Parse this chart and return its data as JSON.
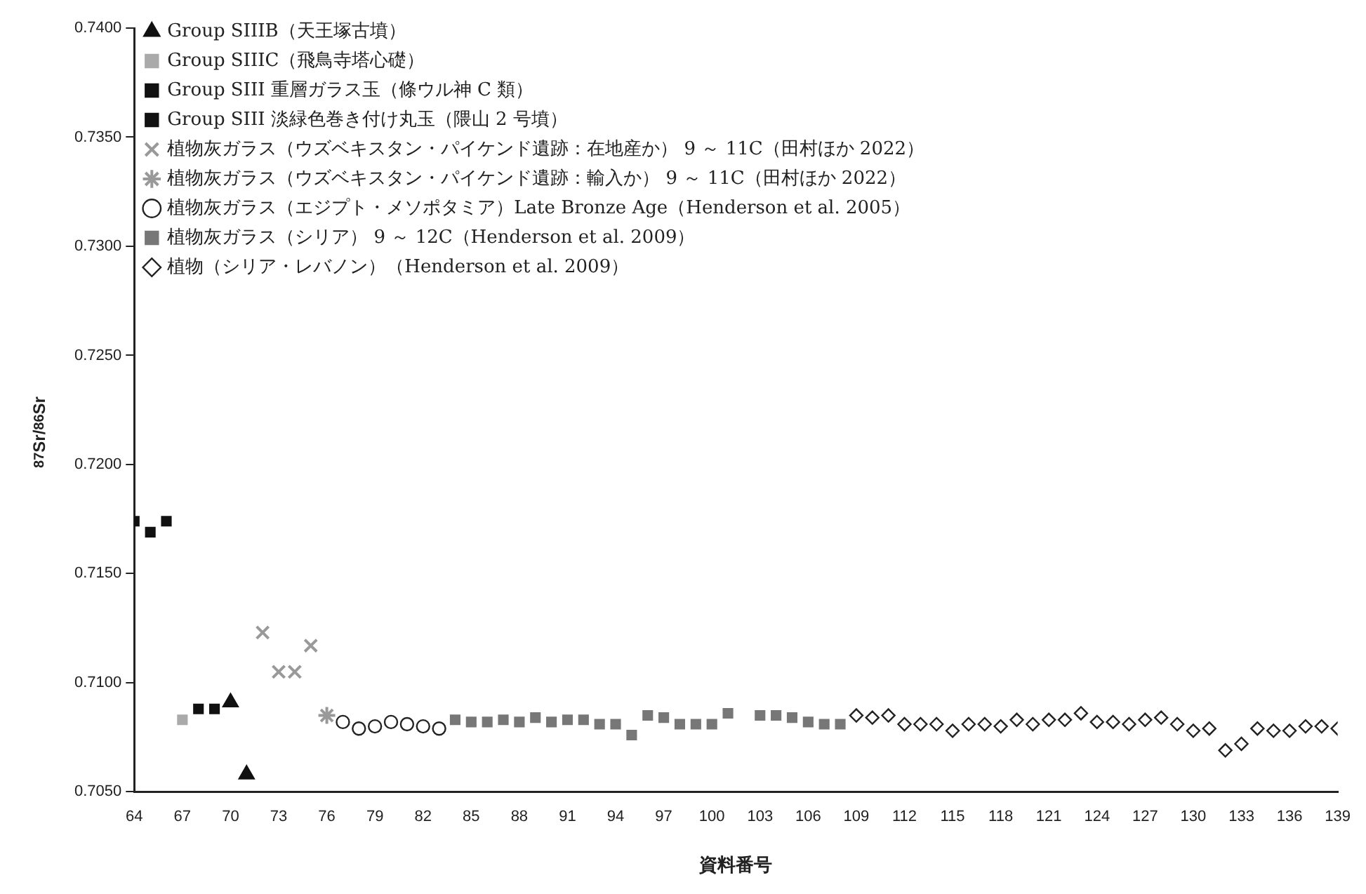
{
  "chart_data": {
    "type": "scatter",
    "xlabel": "資料番号",
    "ylabel": "$^{87}$Sr/$^{86}$Sr",
    "xlim": [
      64,
      139
    ],
    "xticks": [
      64,
      67,
      70,
      73,
      76,
      79,
      82,
      85,
      88,
      91,
      94,
      97,
      100,
      103,
      106,
      109,
      112,
      115,
      118,
      121,
      124,
      127,
      130,
      133,
      136,
      139
    ],
    "ylim": [
      0.705,
      0.74
    ],
    "yticks": [
      {
        "value": 0.705,
        "label": "0.7050"
      },
      {
        "value": 0.71,
        "label": "0.7100"
      },
      {
        "value": 0.715,
        "label": "0.7150"
      },
      {
        "value": 0.72,
        "label": "0.7200"
      },
      {
        "value": 0.725,
        "label": "0.7250"
      },
      {
        "value": 0.73,
        "label": "0.7300"
      },
      {
        "value": 0.735,
        "label": "0.7350"
      },
      {
        "value": 0.74,
        "label": "0.7400"
      }
    ],
    "grid": false,
    "legend": "top left",
    "series": [
      {
        "name": "Group SIIIB（天王塚古墳）",
        "color": "#111111",
        "marker": "triangle",
        "x": [
          70,
          71
        ],
        "values": [
          0.7091,
          0.7058
        ]
      },
      {
        "name": "Group SIIIC（飛鳥寺塔心礎）",
        "color": "#aaaaaa",
        "marker": "square",
        "x": [
          67
        ],
        "values": [
          0.7083
        ]
      },
      {
        "name": "Group SIII 重層ガラス玉（條ウル神 C 類）",
        "color": "#111111",
        "marker": "square",
        "x": [
          64,
          65,
          66
        ],
        "values": [
          0.7174,
          0.7169,
          0.7174
        ]
      },
      {
        "name": "Group SIII 淡緑色巻き付け丸玉（隈山 2 号墳）",
        "color": "#111111",
        "marker": "square",
        "x": [
          68,
          69
        ],
        "values": [
          0.7088,
          0.7088
        ]
      },
      {
        "name": "植物灰ガラス（ウズベキスタン・パイケンド遺跡：在地産か） 9 ～ 11C（田村ほか 2022）",
        "color": "#999999",
        "marker": "cross",
        "x": [
          72,
          73,
          74,
          75
        ],
        "values": [
          0.7123,
          0.7105,
          0.7105,
          0.7117
        ]
      },
      {
        "name": "植物灰ガラス（ウズベキスタン・パイケンド遺跡：輸入か） 9 ～ 11C（田村ほか 2022）",
        "color": "#999999",
        "x": [
          76
        ],
        "values": [
          0.7085
        ]
      },
      {
        "name": "植物灰ガラス（エジプト・メソポタミア）Late Bronze Age（Henderson et al. 2005）",
        "color": "#222222",
        "marker": "circle",
        "x": [
          77,
          78,
          79,
          80,
          81,
          82,
          83
        ],
        "values": [
          0.7082,
          0.7079,
          0.708,
          0.7082,
          0.7081,
          0.708,
          0.7079
        ]
      },
      {
        "name": "植物灰ガラス（シリア） 9 ～ 12C（Henderson et al. 2009）",
        "color": "#777777",
        "marker": "square",
        "x": [
          84,
          85,
          86,
          87,
          88,
          89,
          90,
          91,
          92,
          93,
          94,
          95,
          96,
          97,
          98,
          99,
          100,
          101,
          103,
          104,
          105,
          106,
          107,
          108
        ],
        "values": [
          0.7083,
          0.7082,
          0.7082,
          0.7083,
          0.7082,
          0.7084,
          0.7082,
          0.7083,
          0.7083,
          0.7081,
          0.7081,
          0.7076,
          0.7085,
          0.7084,
          0.7081,
          0.7081,
          0.7081,
          0.7086,
          0.7085,
          0.7085,
          0.7084,
          0.7082,
          0.7081,
          0.7081
        ]
      },
      {
        "name": "植物（シリア・レバノン）（Henderson et al. 2009）",
        "color": "#222222",
        "marker": "diamond",
        "x": [
          109,
          110,
          111,
          112,
          113,
          114,
          115,
          116,
          117,
          118,
          119,
          120,
          121,
          122,
          123,
          124,
          125,
          126,
          127,
          128,
          129,
          130,
          131,
          132,
          133,
          134,
          135,
          136,
          137,
          138,
          139
        ],
        "values": [
          0.7085,
          0.7084,
          0.7085,
          0.7081,
          0.7081,
          0.7081,
          0.7078,
          0.7081,
          0.7081,
          0.708,
          0.7083,
          0.7081,
          0.7083,
          0.7083,
          0.7086,
          0.7082,
          0.7082,
          0.7081,
          0.7083,
          0.7084,
          0.7081,
          0.7078,
          0.7079,
          0.7069,
          0.7072,
          0.7079,
          0.7078,
          0.7078,
          0.708,
          0.708,
          0.7079
        ]
      }
    ]
  }
}
